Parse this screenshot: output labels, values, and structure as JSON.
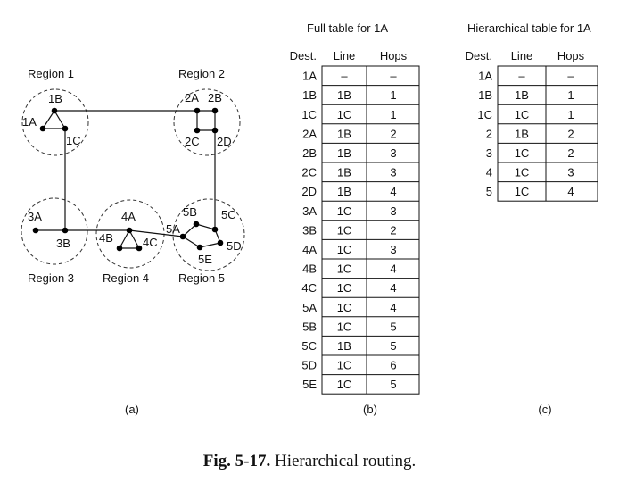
{
  "diagram": {
    "regions": [
      {
        "label": "Region 1"
      },
      {
        "label": "Region 2"
      },
      {
        "label": "Region 3"
      },
      {
        "label": "Region 4"
      },
      {
        "label": "Region 5"
      }
    ],
    "nodes": [
      "1A",
      "1B",
      "1C",
      "2A",
      "2B",
      "2C",
      "2D",
      "3A",
      "3B",
      "4A",
      "4B",
      "4C",
      "5A",
      "5B",
      "5C",
      "5D",
      "5E"
    ],
    "panel_label": "(a)"
  },
  "full_table": {
    "title": "Full table for 1A",
    "headers": [
      "Dest.",
      "Line",
      "Hops"
    ],
    "rows": [
      [
        "1A",
        "–",
        "–"
      ],
      [
        "1B",
        "1B",
        "1"
      ],
      [
        "1C",
        "1C",
        "1"
      ],
      [
        "2A",
        "1B",
        "2"
      ],
      [
        "2B",
        "1B",
        "3"
      ],
      [
        "2C",
        "1B",
        "3"
      ],
      [
        "2D",
        "1B",
        "4"
      ],
      [
        "3A",
        "1C",
        "3"
      ],
      [
        "3B",
        "1C",
        "2"
      ],
      [
        "4A",
        "1C",
        "3"
      ],
      [
        "4B",
        "1C",
        "4"
      ],
      [
        "4C",
        "1C",
        "4"
      ],
      [
        "5A",
        "1C",
        "4"
      ],
      [
        "5B",
        "1C",
        "5"
      ],
      [
        "5C",
        "1B",
        "5"
      ],
      [
        "5D",
        "1C",
        "6"
      ],
      [
        "5E",
        "1C",
        "5"
      ]
    ],
    "panel_label": "(b)"
  },
  "hier_table": {
    "title": "Hierarchical table for 1A",
    "headers": [
      "Dest.",
      "Line",
      "Hops"
    ],
    "rows": [
      [
        "1A",
        "–",
        "–"
      ],
      [
        "1B",
        "1B",
        "1"
      ],
      [
        "1C",
        "1C",
        "1"
      ],
      [
        "2",
        "1B",
        "2"
      ],
      [
        "3",
        "1C",
        "2"
      ],
      [
        "4",
        "1C",
        "3"
      ],
      [
        "5",
        "1C",
        "4"
      ]
    ],
    "panel_label": "(c)"
  },
  "caption": {
    "fig": "Fig.  5-17.",
    "text": " Hierarchical routing."
  }
}
